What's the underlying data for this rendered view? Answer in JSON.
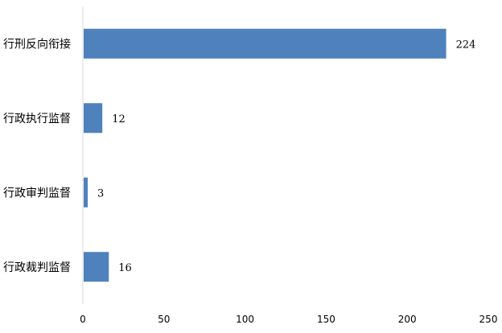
{
  "chart_data": {
    "type": "bar",
    "orientation": "horizontal",
    "categories": [
      "行刑反向衔接",
      "行政执行监督",
      "行政审判监督",
      "行政裁判监督"
    ],
    "values": [
      224,
      12,
      3,
      16
    ],
    "xlim": [
      0,
      250
    ],
    "xticks": [
      0,
      50,
      100,
      150,
      200,
      250
    ],
    "title": "",
    "xlabel": "",
    "ylabel": "",
    "grid": false,
    "legend": "none",
    "bar_color": "#4f81bd",
    "axis_color": "#d9d9d9",
    "data_labels": true
  }
}
